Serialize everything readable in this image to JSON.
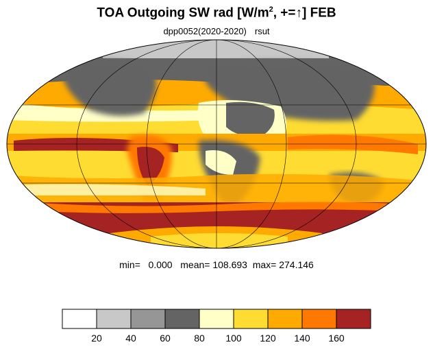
{
  "title": {
    "main_prefix": "TOA Outgoing SW rad [W/m",
    "superscript": "2",
    "main_suffix": ", +=↑] FEB"
  },
  "subtitle": {
    "run": "dpp0052(2020-2020)",
    "variable": "rsut"
  },
  "stats": {
    "text": "min=   0.000   mean= 108.693  max= 274.146",
    "min": 0.0,
    "mean": 108.693,
    "max": 274.146
  },
  "colorbar": {
    "levels": [
      20,
      40,
      60,
      80,
      100,
      120,
      140,
      160
    ],
    "tick_labels": [
      "20",
      "40",
      "60",
      "80",
      "100",
      "120",
      "140",
      "160"
    ],
    "colors": [
      "#ffffff",
      "#c8c8c8",
      "#969696",
      "#646464",
      "#ffffc8",
      "#ffdc32",
      "#ffaa00",
      "#ff7800",
      "#a52323"
    ]
  },
  "map": {
    "projection": "mollweide",
    "colors": {
      "ocean_bright": "#fffcc8",
      "cloud_med": "#ffd836",
      "cloud_high": "#ffa800",
      "cloud_very_high": "#ff7b00",
      "storm": "#a52323",
      "desert": "#646464",
      "snow_grey": "#c8c8c8"
    }
  }
}
